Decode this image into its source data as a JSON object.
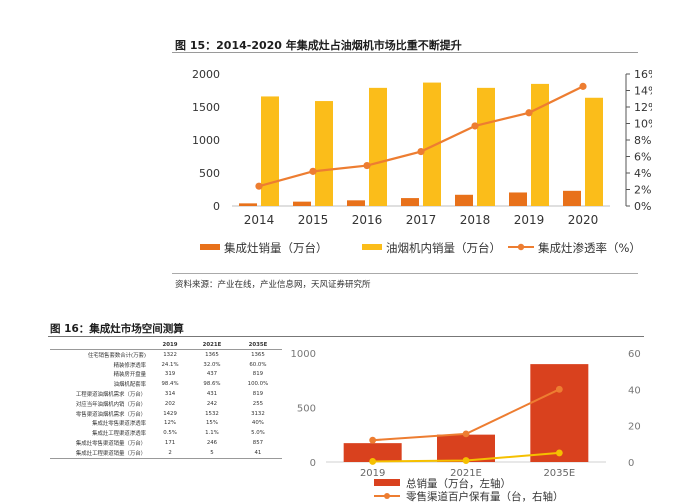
{
  "figure15": {
    "title": "图 15：2014-2020 年集成灶占油烟机市场比重不断提升",
    "source": "资料来源：产业在线，产业信息网，天风证券研究所",
    "legend": [
      "集成灶销量（万台）",
      "油烟机内销量（万台）",
      "集成灶渗透率（%）"
    ]
  },
  "figure16": {
    "title": "图 16：集成灶市场空间测算",
    "table": {
      "columns": [
        "2019",
        "2021E",
        "2035E"
      ],
      "rows": [
        {
          "label": "住宅销售套数合计(万套)",
          "values": [
            "1322",
            "1365",
            "1365"
          ]
        },
        {
          "label": "精装修渗透率",
          "values": [
            "24.1%",
            "32.0%",
            "60.0%"
          ]
        },
        {
          "label": "精装房开盘量",
          "values": [
            "319",
            "437",
            "819"
          ]
        },
        {
          "label": "油烟机配套率",
          "values": [
            "98.4%",
            "98.6%",
            "100.0%"
          ]
        },
        {
          "label": "工程渠道油烟机需求（万台）",
          "values": [
            "314",
            "431",
            "819"
          ]
        },
        {
          "label": "对应当年油烟机内销（万台）",
          "values": [
            "202",
            "242",
            "255"
          ]
        },
        {
          "label": "零售渠道油烟机需求（万台）",
          "values": [
            "1429",
            "1532",
            "3132"
          ]
        },
        {
          "label": "集成灶零售渠道渗透率",
          "values": [
            "12%",
            "15%",
            "40%"
          ]
        },
        {
          "label": "集成灶工程渠道渗透率",
          "values": [
            "0.5%",
            "1.1%",
            "5.0%"
          ]
        },
        {
          "label": "集成灶零售渠道销量（万台）",
          "values": [
            "171",
            "246",
            "857"
          ]
        },
        {
          "label": "集成灶工程渠道销量（万台）",
          "values": [
            "2",
            "5",
            "41"
          ]
        }
      ]
    },
    "legend": [
      "总销量（万台，左轴）",
      "零售渠道百户保有量（台，右轴）"
    ]
  },
  "chart_data": [
    {
      "type": "bar",
      "title": "图 15：2014-2020 年集成灶占油烟机市场比重不断提升",
      "categories": [
        "2014",
        "2015",
        "2016",
        "2017",
        "2018",
        "2019",
        "2020"
      ],
      "y_ticks": [
        "0",
        "500",
        "1000",
        "1500",
        "2000"
      ],
      "y2_ticks": [
        "0%",
        "2%",
        "4%",
        "6%",
        "8%",
        "10%",
        "12%",
        "14%",
        "16%"
      ],
      "ylim": [
        0,
        2000
      ],
      "y2lim": [
        0,
        16
      ],
      "series": [
        {
          "name": "集成灶销量（万台）",
          "type": "bar",
          "axis": "left",
          "color": "#e8711a",
          "values": [
            40,
            66,
            86,
            120,
            170,
            205,
            230
          ]
        },
        {
          "name": "油烟机内销量（万台）",
          "type": "bar",
          "axis": "left",
          "color": "#fbbd1a",
          "values": [
            1660,
            1590,
            1790,
            1870,
            1790,
            1850,
            1640
          ]
        },
        {
          "name": "集成灶渗透率（%）",
          "type": "line",
          "axis": "right",
          "color": "#ed7d31",
          "values": [
            2.4,
            4.2,
            4.9,
            6.6,
            9.7,
            11.3,
            14.5
          ]
        }
      ],
      "legend_position": "bottom"
    },
    {
      "type": "bar",
      "title": "图 16：集成灶市场空间测算",
      "categories": [
        "2019",
        "2021E",
        "2035E"
      ],
      "y_ticks": [
        "0",
        "500",
        "1000"
      ],
      "y2_ticks": [
        "0",
        "20",
        "40",
        "60"
      ],
      "ylim": [
        0,
        1000
      ],
      "y2lim": [
        0,
        60
      ],
      "series": [
        {
          "name": "总销量（万台，左轴）",
          "type": "bar",
          "axis": "left",
          "color": "#d9411e",
          "values": [
            173,
            251,
            898
          ]
        },
        {
          "name": "零售渠道百户保有量（台，右轴）",
          "type": "line",
          "axis": "right",
          "color": "#ed7d31",
          "values": [
            12,
            15.5,
            40
          ]
        },
        {
          "type": "line",
          "axis": "right",
          "color": "#f5c000",
          "values": [
            0.3,
            0.8,
            5
          ]
        }
      ],
      "legend_position": "bottom"
    }
  ]
}
